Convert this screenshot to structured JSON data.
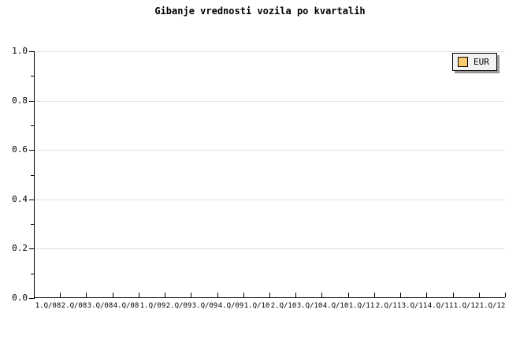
{
  "title": "Gibanje vrednosti vozila po kvartalih",
  "legend": {
    "position": "top-right",
    "items": [
      {
        "label": "EUR",
        "swatch_color": "#fbcb6f"
      }
    ]
  },
  "colors": {
    "background": "#ffffff",
    "axis": "#000000",
    "gridline": "#e0e0e0",
    "text": "#000000",
    "legend_bg": "#f2f2f2",
    "legend_border": "#000000",
    "legend_shadow": "#999999"
  },
  "chart_data": {
    "type": "line",
    "title": "Gibanje vrednosti vozila po kvartalih",
    "categories": [
      "1.Q/08",
      "2.Q/08",
      "3.Q/08",
      "4.Q/08",
      "1.Q/09",
      "2.Q/09",
      "3.Q/09",
      "4.Q/09",
      "1.Q/10",
      "2.Q/10",
      "3.Q/10",
      "4.Q/10",
      "1.Q/11",
      "2.Q/11",
      "3.Q/11",
      "4.Q/11",
      "1.Q/12",
      "1.Q/12"
    ],
    "series": [
      {
        "name": "EUR",
        "values": []
      }
    ],
    "xlabel": "",
    "ylabel": "",
    "ylim": [
      0.0,
      1.0
    ],
    "yticks": [
      "1.0",
      "0.8",
      "0.6",
      "0.4",
      "0.2",
      "0.0"
    ],
    "y_major_step": 0.2,
    "y_minor_step": 0.1,
    "grid": "horizontal-major",
    "legend_position": "top-right"
  }
}
